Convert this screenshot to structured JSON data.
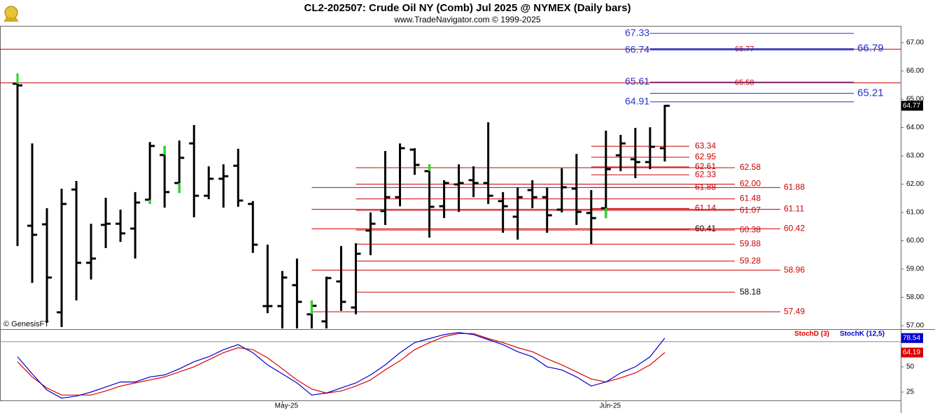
{
  "chart_data": [
    {
      "type": "ohlc",
      "title": "CL2-202507:  Crude Oil NY (Comb) Jul 2025 @ NYMEX  (Daily bars)",
      "subtitle": "www.TradeNavigator.com © 1999-2025",
      "credit": "© GenesisFT",
      "color": "#000000",
      "highlight_color": "#22dd22",
      "highlight_bars": [
        0,
        9,
        10,
        11,
        20,
        28,
        40
      ],
      "open": [
        65.55,
        60.53,
        60.58,
        57.47,
        61.81,
        59.22,
        60.56,
        60.6,
        60.43,
        61.45,
        63.03,
        62.04,
        63.44,
        61.59,
        62.19,
        62.65,
        61.3,
        57.69,
        57.69,
        58.43,
        57.4,
        57.15,
        58.56,
        57.64,
        60.36,
        61.05,
        61.54,
        63.22,
        62.46,
        61.22,
        61.99,
        62.14,
        62.04,
        61.4,
        60.85,
        61.79,
        61.54,
        61.1,
        61.84,
        60.98,
        61.15,
        63.02,
        62.88,
        62.78,
        63.27
      ],
      "high": [
        65.91,
        63.44,
        61.15,
        61.84,
        62.11,
        60.6,
        61.52,
        61.1,
        61.72,
        63.49,
        63.35,
        63.54,
        64.09,
        62.63,
        62.7,
        63.25,
        61.4,
        59.86,
        58.93,
        59.37,
        57.89,
        58.73,
        59.81,
        59.91,
        61.0,
        63.17,
        63.44,
        63.27,
        62.7,
        62.14,
        62.7,
        62.63,
        64.19,
        61.72,
        61.89,
        62.14,
        61.89,
        62.56,
        63.07,
        61.79,
        63.89,
        63.74,
        63.99,
        64.01,
        64.8
      ],
      "low": [
        59.81,
        58.51,
        57.1,
        56.95,
        57.89,
        58.63,
        59.74,
        59.96,
        59.37,
        61.3,
        61.17,
        61.69,
        60.83,
        61.47,
        61.17,
        61.2,
        59.57,
        57.44,
        56.9,
        56.9,
        56.9,
        56.9,
        57.52,
        57.4,
        59.49,
        60.56,
        61.22,
        62.33,
        60.11,
        60.8,
        61.02,
        61.54,
        61.3,
        60.28,
        60.04,
        61.15,
        60.28,
        61.0,
        60.56,
        59.89,
        60.8,
        62.46,
        62.21,
        62.53,
        62.8
      ],
      "close": [
        65.49,
        60.21,
        58.7,
        61.3,
        59.22,
        59.37,
        60.6,
        60.26,
        61.35,
        63.35,
        61.72,
        62.93,
        61.59,
        62.19,
        62.28,
        61.42,
        59.86,
        57.69,
        58.7,
        57.84,
        57.7,
        58.68,
        57.84,
        59.54,
        60.6,
        61.54,
        63.27,
        62.68,
        61.2,
        62.04,
        62.04,
        62.04,
        61.59,
        61.22,
        61.54,
        61.54,
        60.9,
        61.89,
        61.02,
        60.8,
        62.53,
        63.44,
        62.78,
        63.32,
        64.77
      ],
      "ylim": [
        56.9,
        67.57
      ],
      "yticks": [
        {
          "value": 57,
          "label": "57.00"
        },
        {
          "value": 58,
          "label": "58.00"
        },
        {
          "value": 59,
          "label": "59.00"
        },
        {
          "value": 60,
          "label": "60.00"
        },
        {
          "value": 61,
          "label": "61.00"
        },
        {
          "value": 62,
          "label": "62.00"
        },
        {
          "value": 63,
          "label": "63.00"
        },
        {
          "value": 64,
          "label": "64.00"
        },
        {
          "value": 65,
          "label": "65.00"
        },
        {
          "value": 66,
          "label": "66.00"
        },
        {
          "value": 67,
          "label": "67.00"
        }
      ],
      "level_groups": [
        {
          "color": "#cc0000",
          "start": 0,
          "levels": [
            {
              "value": 66.77,
              "label": "66.77"
            },
            {
              "value": 65.58,
              "label": "65.58"
            }
          ]
        },
        {
          "color": "#2233cc",
          "start": 43,
          "levels": [
            {
              "value": 66.79,
              "label": "66.79"
            },
            {
              "value": 65.21,
              "label": "65.21"
            }
          ]
        },
        {
          "color": "#2233cc",
          "start": 43,
          "levels": [
            {
              "value": 67.33,
              "label": "67.33"
            },
            {
              "value": 66.74,
              "label": "66.74"
            },
            {
              "value": 65.61,
              "label": "65.61"
            },
            {
              "value": 64.91,
              "label": "64.91"
            }
          ]
        },
        {
          "color": "#cc0000",
          "start": 39,
          "levels": [
            {
              "value": 63.34,
              "label": "63.34"
            },
            {
              "value": 62.95,
              "label": "62.95"
            },
            {
              "value": 62.61,
              "label": "62.61"
            },
            {
              "value": 62.33,
              "label": "62.33"
            },
            {
              "value": 61.88,
              "label": "61.88"
            },
            {
              "value": 61.14,
              "label": "61.14"
            },
            {
              "value": 60.41,
              "label": "60.41",
              "color": "#000000"
            }
          ]
        },
        {
          "color": "#cc0000",
          "start": 23,
          "levels": [
            {
              "value": 62.58,
              "label": "62.58"
            },
            {
              "value": 62.0,
              "label": "62.00"
            },
            {
              "value": 61.48,
              "label": "61.48"
            },
            {
              "value": 61.07,
              "label": "61.07"
            },
            {
              "value": 60.38,
              "label": "60.38"
            },
            {
              "value": 59.88,
              "label": "59.88"
            },
            {
              "value": 59.28,
              "label": "59.28"
            },
            {
              "value": 58.18,
              "label": "58.18",
              "color": "#000000"
            }
          ]
        },
        {
          "color": "#cc0000",
          "start": 20,
          "levels": [
            {
              "value": 61.88,
              "label": "61.88"
            },
            {
              "value": 61.11,
              "label": "61.11"
            },
            {
              "value": 60.42,
              "label": "60.42"
            },
            {
              "value": 58.96,
              "label": "58.96"
            },
            {
              "value": 57.49,
              "label": "57.49"
            }
          ]
        }
      ]
    },
    {
      "type": "line",
      "categories": [
        null,
        null,
        null,
        null,
        null,
        null,
        null,
        null,
        null,
        null,
        null,
        null,
        null,
        null,
        null,
        null,
        null,
        null,
        "May-25",
        null,
        null,
        null,
        null,
        null,
        null,
        null,
        null,
        null,
        null,
        null,
        null,
        null,
        null,
        null,
        null,
        null,
        null,
        null,
        null,
        null,
        "Jun-25",
        null,
        null,
        null,
        null
      ],
      "series": [
        {
          "name": "StochD (3)",
          "color": "#dd0000",
          "values": [
            55,
            40,
            29,
            22,
            22,
            22,
            26,
            31,
            34,
            37,
            40,
            45,
            50,
            57,
            64,
            69,
            67,
            59,
            48,
            37,
            28,
            24,
            26,
            31,
            37,
            47,
            56,
            67,
            74,
            80,
            83,
            83,
            78,
            74,
            69,
            65,
            58,
            52,
            45,
            38,
            35,
            39,
            44,
            52,
            64.19
          ]
        },
        {
          "name": "StochK (12,5)",
          "color": "#0000cc",
          "values": [
            60,
            43,
            27,
            19,
            21,
            25,
            30,
            35,
            35,
            40,
            42,
            48,
            55,
            60,
            67,
            72,
            64,
            52,
            43,
            34,
            22,
            24,
            29,
            34,
            42,
            52,
            64,
            74,
            78,
            82,
            84,
            82,
            77,
            72,
            65,
            60,
            50,
            47,
            40,
            31,
            35,
            44,
            50,
            60,
            78.54
          ]
        }
      ],
      "ylim": [
        16,
        86
      ],
      "yticks": [
        25,
        50
      ],
      "guide_lines": [
        75
      ]
    }
  ]
}
